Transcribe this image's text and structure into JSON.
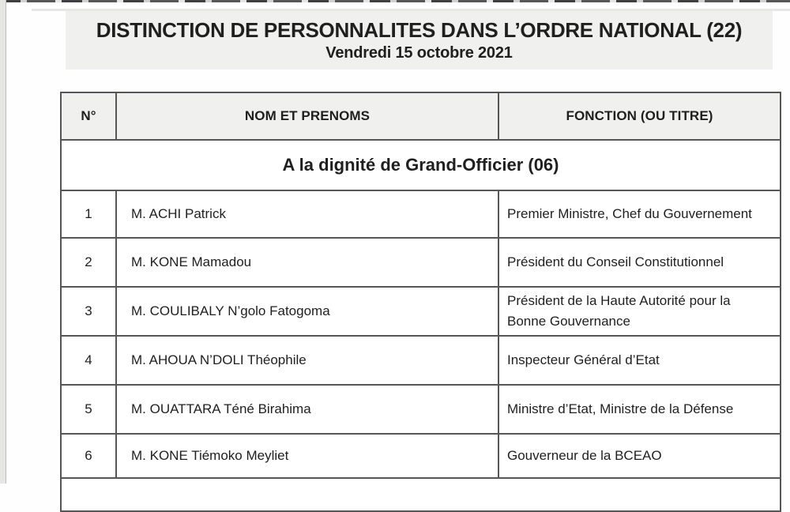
{
  "doc": {
    "title": "DISTINCTION DE PERSONNALITES DANS L’ORDRE NATIONAL (22)",
    "date": "Vendredi 15 octobre 2021",
    "table": {
      "headers": [
        "N°",
        "NOM ET PRENOMS",
        "FONCTION (OU TITRE)"
      ],
      "section_header": "A la dignité de Grand-Officier (06)",
      "rows": [
        {
          "num": "1",
          "name": "M. ACHI Patrick",
          "function": "Premier Ministre, Chef du Gouvernement"
        },
        {
          "num": "2",
          "name": "M. KONE Mamadou",
          "function": "Président du Conseil Constitutionnel"
        },
        {
          "num": "3",
          "name": "M. COULIBALY N’golo Fatogoma",
          "function": "Président de la Haute Autorité pour la Bonne Gouvernance"
        },
        {
          "num": "4",
          "name": "M. AHOUA N’DOLI Théophile",
          "function": "Inspecteur Général d’Etat"
        },
        {
          "num": "5",
          "name": "M. OUATTARA Téné Birahima",
          "function": "Ministre d’Etat, Ministre de la Défense"
        },
        {
          "num": "6",
          "name": "M. KONE Tiémoko Meyliet",
          "function": "Gouverneur de la BCEAO"
        }
      ]
    }
  },
  "colors": {
    "banner_bg": "#f0f0ee",
    "header_bg": "#f0f0ee",
    "table_border": "#565656",
    "text": "#1f1f1f",
    "page_edge": "#e6e6e5"
  }
}
